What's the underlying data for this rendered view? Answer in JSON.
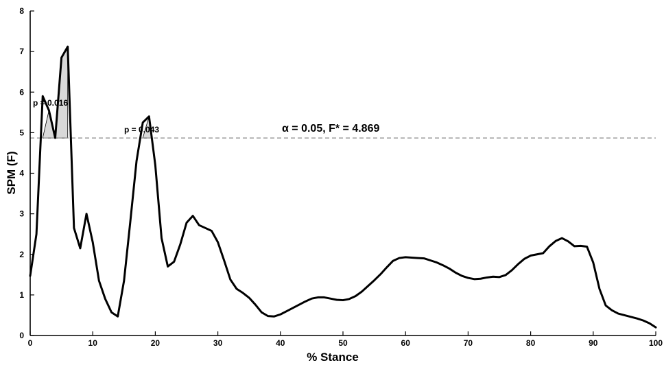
{
  "chart_data": {
    "type": "line",
    "xlabel": "% Stance",
    "ylabel": "SPM (F)",
    "xlim": [
      0,
      100
    ],
    "ylim": [
      0,
      8
    ],
    "xticks": [
      0,
      10,
      20,
      30,
      40,
      50,
      60,
      70,
      80,
      90,
      100
    ],
    "yticks": [
      0,
      1,
      2,
      3,
      4,
      5,
      6,
      7,
      8
    ],
    "x_tick_labels": [
      "0",
      "10",
      "20",
      "30",
      "40",
      "50",
      "60",
      "70",
      "80",
      "90",
      "100"
    ],
    "y_tick_labels": [
      "0",
      "1",
      "2",
      "3",
      "4",
      "5",
      "6",
      "7",
      "8"
    ],
    "grid": false,
    "threshold": {
      "value": 4.869,
      "label": "α = 0.05, F* = 4.869",
      "style": "dashed",
      "color": "#8a8a8a"
    },
    "clusters": [
      {
        "start": 2,
        "end": 6,
        "label": "p = 0.016",
        "fill": "#d9d9d9"
      },
      {
        "start": 18,
        "end": 19.5,
        "label": "p = 0.043",
        "fill": "#d9d9d9"
      }
    ],
    "series": [
      {
        "color": "#000000",
        "points": [
          [
            0,
            1.47
          ],
          [
            1,
            2.5
          ],
          [
            2,
            5.9
          ],
          [
            3,
            5.55
          ],
          [
            4,
            4.87
          ],
          [
            5,
            6.85
          ],
          [
            6,
            7.12
          ],
          [
            7,
            2.65
          ],
          [
            8,
            2.15
          ],
          [
            9,
            3.0
          ],
          [
            10,
            2.3
          ],
          [
            11,
            1.35
          ],
          [
            12,
            0.9
          ],
          [
            13,
            0.57
          ],
          [
            14,
            0.47
          ],
          [
            15,
            1.35
          ],
          [
            16,
            2.8
          ],
          [
            17,
            4.3
          ],
          [
            18,
            5.25
          ],
          [
            19,
            5.4
          ],
          [
            20,
            4.2
          ],
          [
            21,
            2.4
          ],
          [
            22,
            1.7
          ],
          [
            23,
            1.82
          ],
          [
            24,
            2.25
          ],
          [
            25,
            2.78
          ],
          [
            26,
            2.95
          ],
          [
            27,
            2.72
          ],
          [
            28,
            2.65
          ],
          [
            29,
            2.58
          ],
          [
            30,
            2.3
          ],
          [
            31,
            1.85
          ],
          [
            32,
            1.38
          ],
          [
            33,
            1.15
          ],
          [
            34,
            1.05
          ],
          [
            35,
            0.93
          ],
          [
            36,
            0.76
          ],
          [
            37,
            0.57
          ],
          [
            38,
            0.48
          ],
          [
            39,
            0.47
          ],
          [
            40,
            0.52
          ],
          [
            41,
            0.6
          ],
          [
            42,
            0.68
          ],
          [
            43,
            0.76
          ],
          [
            44,
            0.84
          ],
          [
            45,
            0.91
          ],
          [
            46,
            0.94
          ],
          [
            47,
            0.94
          ],
          [
            48,
            0.91
          ],
          [
            49,
            0.88
          ],
          [
            50,
            0.87
          ],
          [
            51,
            0.9
          ],
          [
            52,
            0.97
          ],
          [
            53,
            1.08
          ],
          [
            54,
            1.22
          ],
          [
            55,
            1.36
          ],
          [
            56,
            1.51
          ],
          [
            57,
            1.68
          ],
          [
            58,
            1.84
          ],
          [
            59,
            1.91
          ],
          [
            60,
            1.93
          ],
          [
            61,
            1.92
          ],
          [
            62,
            1.91
          ],
          [
            63,
            1.9
          ],
          [
            64,
            1.85
          ],
          [
            65,
            1.8
          ],
          [
            66,
            1.73
          ],
          [
            67,
            1.65
          ],
          [
            68,
            1.55
          ],
          [
            69,
            1.47
          ],
          [
            70,
            1.42
          ],
          [
            71,
            1.39
          ],
          [
            72,
            1.4
          ],
          [
            73,
            1.43
          ],
          [
            74,
            1.45
          ],
          [
            75,
            1.44
          ],
          [
            76,
            1.49
          ],
          [
            77,
            1.61
          ],
          [
            78,
            1.76
          ],
          [
            79,
            1.89
          ],
          [
            80,
            1.97
          ],
          [
            81,
            2.0
          ],
          [
            82,
            2.03
          ],
          [
            83,
            2.2
          ],
          [
            84,
            2.33
          ],
          [
            85,
            2.4
          ],
          [
            86,
            2.32
          ],
          [
            87,
            2.2
          ],
          [
            88,
            2.21
          ],
          [
            89,
            2.19
          ],
          [
            90,
            1.8
          ],
          [
            91,
            1.15
          ],
          [
            92,
            0.74
          ],
          [
            93,
            0.62
          ],
          [
            94,
            0.54
          ],
          [
            95,
            0.5
          ],
          [
            96,
            0.46
          ],
          [
            97,
            0.42
          ],
          [
            98,
            0.37
          ],
          [
            99,
            0.3
          ],
          [
            100,
            0.2
          ]
        ]
      }
    ]
  }
}
